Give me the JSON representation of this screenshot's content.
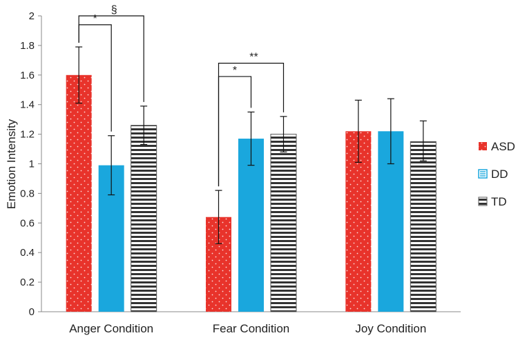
{
  "chart_data": {
    "type": "bar",
    "title": "",
    "xlabel": "",
    "ylabel": "Emotion Intensity",
    "ylim": [
      0,
      2
    ],
    "yticks": [
      "0",
      "0.2",
      "0.4",
      "0.6",
      "0.8",
      "1",
      "1.2",
      "1.4",
      "1.6",
      "1.8",
      "2"
    ],
    "grid": false,
    "legend_position": "right",
    "categories": [
      "Anger Condition",
      "Fear Condition",
      "Joy Condition"
    ],
    "series": [
      {
        "name": "ASD",
        "color": "#e8332b",
        "pattern": "dots",
        "values": [
          1.6,
          0.64,
          1.22
        ],
        "err_low": [
          1.41,
          0.46,
          1.01
        ],
        "err_high": [
          1.79,
          0.82,
          1.43
        ]
      },
      {
        "name": "DD",
        "color": "#1aa7dd",
        "pattern": "solid",
        "values": [
          0.99,
          1.17,
          1.22
        ],
        "err_low": [
          0.79,
          0.99,
          1.0
        ],
        "err_high": [
          1.19,
          1.35,
          1.44
        ]
      },
      {
        "name": "TD",
        "color": "#333333",
        "pattern": "stripes",
        "values": [
          1.26,
          1.2,
          1.15
        ],
        "err_low": [
          1.13,
          1.08,
          1.02
        ],
        "err_high": [
          1.39,
          1.32,
          1.29
        ]
      }
    ],
    "significance": [
      {
        "category": 0,
        "from": 0,
        "to": 1,
        "label": "*",
        "level": 1.94
      },
      {
        "category": 0,
        "from": 0,
        "to": 2,
        "label": "§",
        "level": 2.0
      },
      {
        "category": 1,
        "from": 0,
        "to": 1,
        "label": "*",
        "level": 1.59
      },
      {
        "category": 1,
        "from": 0,
        "to": 2,
        "label": "**",
        "level": 1.68
      }
    ]
  }
}
